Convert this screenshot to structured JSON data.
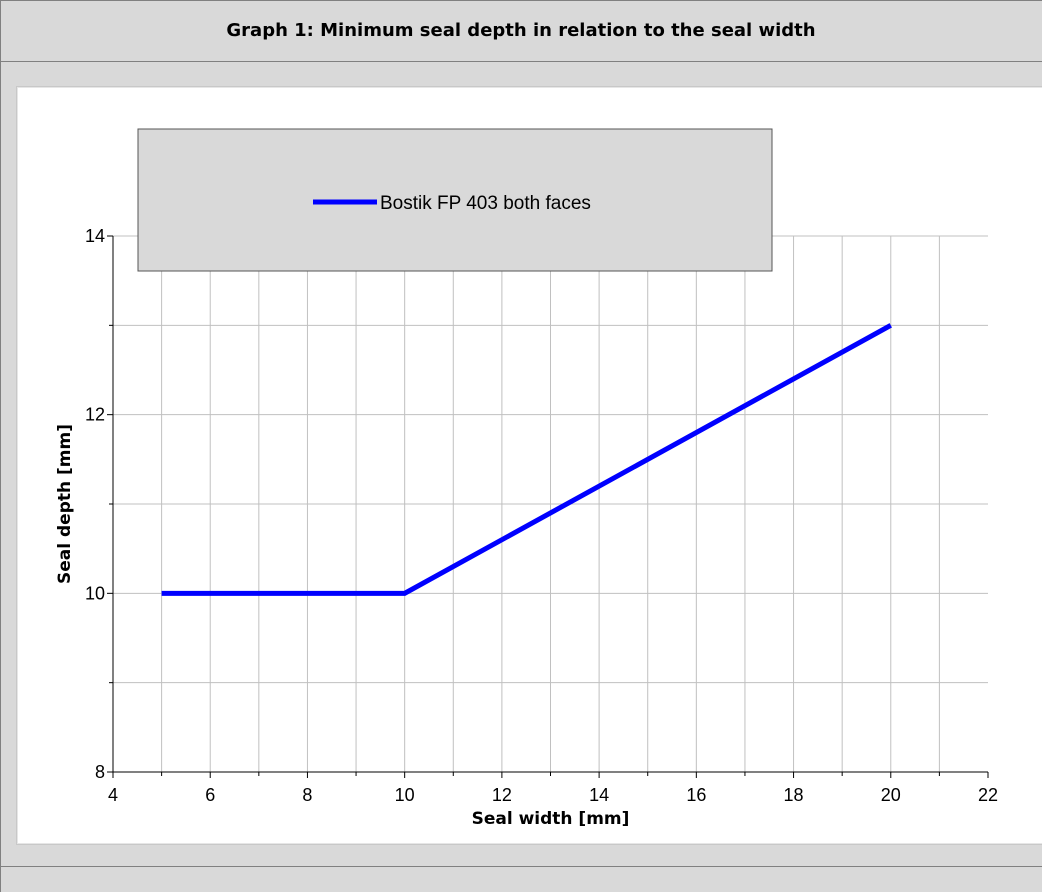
{
  "chart_data": {
    "type": "line",
    "title": "Graph 1: Minimum seal depth in relation to the seal width",
    "xlabel": "Seal width [mm]",
    "ylabel": "Seal depth [mm]",
    "xlim": [
      4,
      22
    ],
    "ylim": [
      8,
      14
    ],
    "xticks": [
      4,
      6,
      8,
      10,
      12,
      14,
      16,
      18,
      20,
      22
    ],
    "yticks": [
      8,
      10,
      12,
      14
    ],
    "grid": true,
    "legend_position": "top",
    "series": [
      {
        "name": "Bostik FP 403 both faces",
        "color": "#0000ff",
        "x": [
          5,
          10,
          20
        ],
        "y": [
          10,
          10,
          13
        ]
      }
    ]
  }
}
